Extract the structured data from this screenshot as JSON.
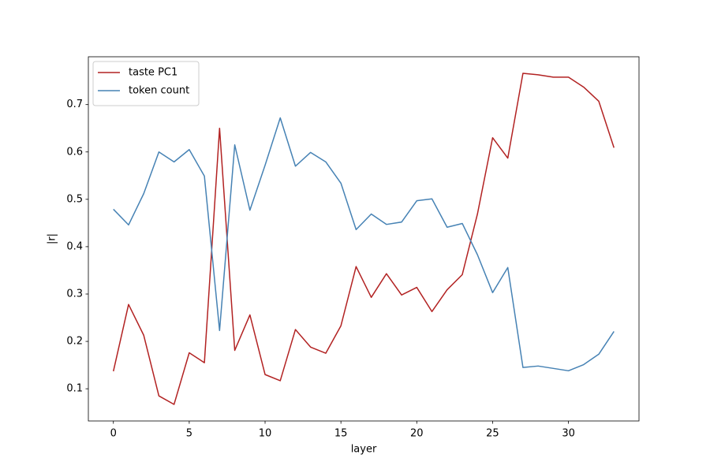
{
  "chart_data": {
    "type": "line",
    "xlabel": "layer",
    "ylabel": "|r|",
    "x": [
      0,
      1,
      2,
      3,
      4,
      5,
      6,
      7,
      8,
      9,
      10,
      11,
      12,
      13,
      14,
      15,
      16,
      17,
      18,
      19,
      20,
      21,
      22,
      23,
      24,
      25,
      26,
      27,
      28,
      29,
      30,
      31,
      32,
      33
    ],
    "series": [
      {
        "name": "taste PC1",
        "color": "#b22222",
        "values": [
          0.137,
          0.278,
          0.213,
          0.085,
          0.067,
          0.176,
          0.155,
          0.65,
          0.181,
          0.256,
          0.13,
          0.117,
          0.225,
          0.188,
          0.175,
          0.233,
          0.358,
          0.293,
          0.343,
          0.298,
          0.314,
          0.263,
          0.309,
          0.341,
          0.469,
          0.63,
          0.587,
          0.766,
          0.763,
          0.758,
          0.758,
          0.737,
          0.707,
          0.609
        ]
      },
      {
        "name": "token count",
        "color": "#4682b4",
        "values": [
          0.479,
          0.446,
          0.512,
          0.6,
          0.579,
          0.605,
          0.549,
          0.223,
          0.615,
          0.477,
          0.572,
          0.672,
          0.57,
          0.599,
          0.579,
          0.534,
          0.436,
          0.469,
          0.447,
          0.452,
          0.497,
          0.501,
          0.441,
          0.449,
          0.383,
          0.303,
          0.356,
          0.145,
          0.148,
          0.143,
          0.138,
          0.151,
          0.173,
          0.221
        ]
      }
    ],
    "xlim": [
      -1.65,
      34.65
    ],
    "xticks": [
      0,
      5,
      10,
      15,
      20,
      25,
      30
    ],
    "ylim": [
      0.032,
      0.801
    ],
    "yticks": [
      0.1,
      0.2,
      0.3,
      0.4,
      0.5,
      0.6,
      0.7
    ],
    "legend": "upper left",
    "grid": false
  }
}
